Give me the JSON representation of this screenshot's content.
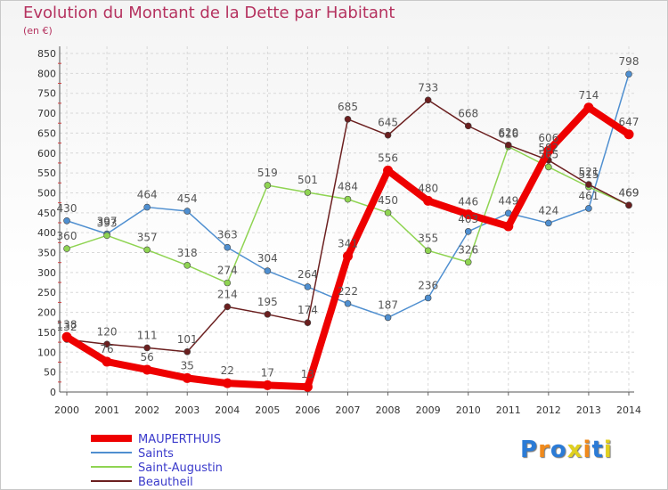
{
  "chart_data": {
    "type": "line",
    "title": "Evolution du Montant de la Dette par Habitant",
    "subtitle": "(en €)",
    "x": [
      "2000",
      "2001",
      "2002",
      "2003",
      "2004",
      "2005",
      "2006",
      "2007",
      "2008",
      "2009",
      "2010",
      "2011",
      "2012",
      "2013",
      "2014"
    ],
    "ylim": [
      0,
      850
    ],
    "yticks": [
      0,
      50,
      100,
      150,
      200,
      250,
      300,
      350,
      400,
      450,
      500,
      550,
      600,
      650,
      700,
      750,
      800,
      850
    ],
    "series": [
      {
        "name": "MAUPERTHUIS",
        "color": "#ee0000",
        "values": [
          138,
          76,
          56,
          35,
          22,
          17,
          13,
          341,
          556,
          480,
          446,
          416,
          606,
          714,
          647
        ],
        "labels": [
          "138",
          "76",
          "56",
          "35",
          "22",
          "17",
          "13",
          "341",
          "556",
          "480",
          "446",
          "",
          "606",
          "714",
          "647"
        ]
      },
      {
        "name": "Saints",
        "color": "#4f8fd0",
        "values": [
          430,
          397,
          464,
          454,
          363,
          304,
          264,
          222,
          187,
          236,
          403,
          449,
          424,
          461,
          798
        ],
        "labels": [
          "430",
          "397",
          "464",
          "454",
          "363",
          "304",
          "264",
          "222",
          "187",
          "236",
          "403",
          "449",
          "424",
          "461",
          "798"
        ]
      },
      {
        "name": "Saint-Augustin",
        "color": "#8fd452",
        "values": [
          360,
          393,
          357,
          318,
          274,
          519,
          501,
          484,
          450,
          355,
          326,
          616,
          565,
          515,
          469
        ],
        "labels": [
          "360",
          "393",
          "357",
          "318",
          "274",
          "519",
          "501",
          "484",
          "450",
          "355",
          "326",
          "616",
          "565",
          "515",
          "469"
        ]
      },
      {
        "name": "Beautheil",
        "color": "#6b1f1f",
        "values": [
          132,
          120,
          111,
          101,
          214,
          195,
          174,
          685,
          645,
          733,
          668,
          620,
          582,
          521,
          469
        ],
        "labels": [
          "132",
          "120",
          "111",
          "101",
          "214",
          "195",
          "174",
          "685",
          "645",
          "733",
          "668",
          "620",
          "582",
          "521",
          "469"
        ]
      }
    ]
  },
  "logo": {
    "text": "Proxiti"
  }
}
